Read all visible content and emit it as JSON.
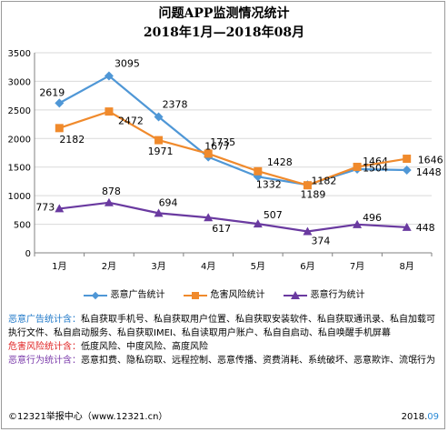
{
  "colors": {
    "ad": "#4f97d6",
    "risk": "#f08a2c",
    "behavior": "#6a3aa0",
    "note_ad": "#1f78c8",
    "note_risk": "#e02424",
    "note_behavior": "#7a3aaa",
    "grid": "#d9d9d9",
    "axis": "#808080"
  },
  "chart_data": {
    "type": "line",
    "title": "问题APP监测情况统计",
    "subtitle": "2018年1月—2018年08月",
    "xlabel": "",
    "ylabel": "",
    "categories": [
      "1月",
      "2月",
      "3月",
      "4月",
      "5月",
      "6月",
      "7月",
      "8月"
    ],
    "ylim": [
      0,
      3500
    ],
    "yticks": [
      "0",
      "500",
      "1000",
      "1500",
      "2000",
      "2500",
      "3000",
      "3500"
    ],
    "grid": true,
    "legend_position": "bottom",
    "series": [
      {
        "name": "恶意广告统计",
        "values": [
          2619,
          3095,
          2378,
          1677,
          1332,
          1189,
          1464,
          1448
        ],
        "labels": [
          "2619",
          "3095",
          "2378",
          "1677",
          "1332",
          "1189",
          "1464",
          "1448"
        ]
      },
      {
        "name": "危害风险统计",
        "values": [
          2182,
          2472,
          1971,
          1735,
          1428,
          1182,
          1504,
          1646
        ],
        "labels": [
          "2182",
          "2472",
          "1971",
          "1735",
          "1428",
          "1182",
          "1504",
          "1646"
        ]
      },
      {
        "name": "恶意行为统计",
        "values": [
          773,
          878,
          694,
          617,
          507,
          374,
          496,
          448
        ],
        "labels": [
          "773",
          "878",
          "694",
          "617",
          "507",
          "374",
          "496",
          "448"
        ]
      }
    ]
  },
  "notes": [
    {
      "head": "恶意广告统计含：",
      "body": "私自获取手机号、私自获取用户位置、私自获取安装软件、私自获取通讯录、私自加载可执行文件、私自启动服务、私自获取IMEI、私自读取用户账户、私自自启动、私自唤醒手机屏幕"
    },
    {
      "head": "危害风险统计含：",
      "body": "低度风险、中度风险、高度风险"
    },
    {
      "head": "恶意行为统计含：",
      "body": "恶意扣费、隐私窃取、远程控制、恶意传播、资费消耗、系统破坏、恶意欺诈、流氓行为"
    }
  ],
  "footer": {
    "left": "©12321举报中心（www.12321.cn）",
    "right_main": "2018.",
    "right_highlight": "09"
  }
}
